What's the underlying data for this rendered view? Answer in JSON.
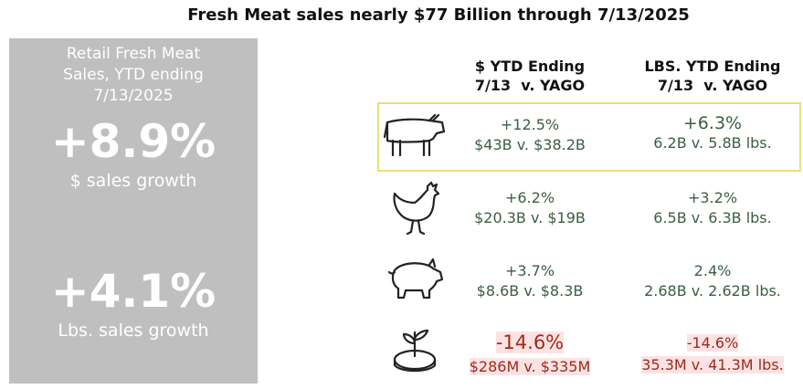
{
  "title": "Fresh Meat sales nearly $77 Billion through 7/13/2025",
  "panel": {
    "label_lines": [
      "Retail Fresh Meat",
      "Sales, YTD ending",
      "7/13/2025"
    ],
    "dollar_growth": "+8.9%",
    "dollar_caption": "$ sales growth",
    "lbs_growth": "+4.1%",
    "lbs_caption": "Lbs. sales growth"
  },
  "table": {
    "headers": [
      [
        "$ YTD Ending",
        "7/13  v. YAGO"
      ],
      [
        "LBS. YTD Ending",
        "7/13  v. YAGO"
      ]
    ],
    "rows": [
      {
        "dollar": {
          "change": "+12.5%",
          "detail": "$43B v. $38.2B"
        },
        "lbs": {
          "change": "+6.3%",
          "detail": "6.2B v. 5.8B lbs."
        }
      },
      {
        "dollar": {
          "change": "+6.2%",
          "detail": "$20.3B v. $19B"
        },
        "lbs": {
          "change": "+3.2%",
          "detail": "6.5B v. 6.3B lbs."
        }
      },
      {
        "dollar": {
          "change": "+3.7%",
          "detail": "$8.6B v. $8.3B"
        },
        "lbs": {
          "change": "2.4%",
          "detail": "2.68B v. 2.62B lbs."
        }
      },
      {
        "dollar": {
          "change": "-14.6%",
          "detail": "$286M v. $335M"
        },
        "lbs": {
          "change": "-14.6%",
          "detail": "35.3M v. 41.3M lbs."
        }
      }
    ]
  }
}
